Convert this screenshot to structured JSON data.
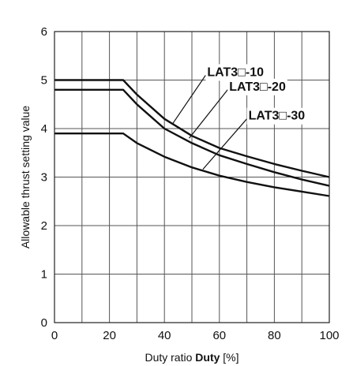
{
  "chart_data": {
    "type": "line",
    "title": "",
    "xlabel_prefix": "Duty ratio ",
    "xlabel_bold": "Duty",
    "xlabel_suffix": " [%]",
    "ylabel": "Allowable thrust setting value",
    "xlim": [
      0,
      100
    ],
    "ylim": [
      0,
      6
    ],
    "x_ticks": [
      0,
      20,
      40,
      60,
      80,
      100
    ],
    "y_ticks": [
      0,
      1,
      2,
      3,
      4,
      5,
      6
    ],
    "grid": true,
    "legend": "inline callout labels",
    "series": [
      {
        "name": "LAT3□-10",
        "x": [
          0,
          25,
          30,
          40,
          50,
          60,
          70,
          80,
          90,
          100
        ],
        "y": [
          5.0,
          5.0,
          4.7,
          4.2,
          3.85,
          3.6,
          3.43,
          3.27,
          3.13,
          3.0
        ]
      },
      {
        "name": "LAT3□-20",
        "x": [
          0,
          25,
          30,
          40,
          50,
          60,
          70,
          80,
          90,
          100
        ],
        "y": [
          4.8,
          4.8,
          4.5,
          4.0,
          3.7,
          3.45,
          3.27,
          3.1,
          2.95,
          2.82
        ]
      },
      {
        "name": "LAT3□-30",
        "x": [
          0,
          25,
          30,
          40,
          50,
          60,
          70,
          80,
          90,
          100
        ],
        "y": [
          3.9,
          3.9,
          3.7,
          3.42,
          3.2,
          3.03,
          2.9,
          2.79,
          2.7,
          2.61
        ]
      }
    ],
    "label_leaders": [
      {
        "series": 0,
        "from": [
          43,
          4.1
        ],
        "to": [
          55,
          5.1
        ]
      },
      {
        "series": 1,
        "from": [
          49,
          3.8
        ],
        "to": [
          63,
          4.8
        ]
      },
      {
        "series": 2,
        "from": [
          54,
          3.16
        ],
        "to": [
          70,
          4.2
        ]
      }
    ]
  }
}
